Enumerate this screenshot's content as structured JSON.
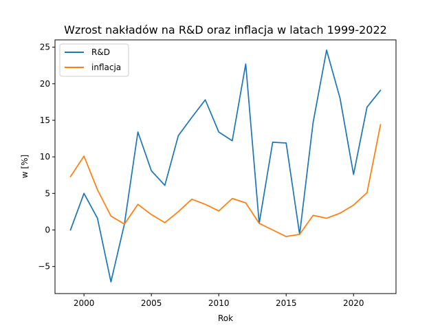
{
  "chart_data": {
    "type": "line",
    "title": "Wzrost nakładów na R&D oraz inflacja w latach 1999-2022",
    "xlabel": "Rok",
    "ylabel": "w [%]",
    "xlim": [
      1997.85,
      2023.15
    ],
    "ylim": [
      -8.7,
      26.0
    ],
    "x_ticks": [
      2000,
      2005,
      2010,
      2015,
      2020
    ],
    "y_ticks": [
      -5,
      0,
      5,
      10,
      15,
      20,
      25
    ],
    "grid": false,
    "legend_position": "top-left",
    "x": [
      1999,
      2000,
      2001,
      2002,
      2003,
      2004,
      2005,
      2006,
      2007,
      2008,
      2009,
      2010,
      2011,
      2012,
      2013,
      2014,
      2015,
      2016,
      2017,
      2018,
      2019,
      2020,
      2021,
      2022
    ],
    "series": [
      {
        "name": "R&D",
        "color": "#1f77b4",
        "values": [
          0.0,
          5.0,
          1.6,
          -7.1,
          0.8,
          13.4,
          8.1,
          6.1,
          12.9,
          15.4,
          17.8,
          13.4,
          12.2,
          22.7,
          0.9,
          12.0,
          11.9,
          -0.6,
          14.7,
          24.6,
          18.0,
          7.6,
          16.8,
          19.1
        ]
      },
      {
        "name": "inflacja",
        "color": "#ff7f0e",
        "values": [
          7.3,
          10.1,
          5.5,
          1.9,
          0.8,
          3.5,
          2.1,
          1.0,
          2.5,
          4.2,
          3.5,
          2.6,
          4.3,
          3.7,
          0.9,
          0.0,
          -0.9,
          -0.6,
          2.0,
          1.6,
          2.3,
          3.4,
          5.1,
          14.4
        ]
      }
    ]
  }
}
